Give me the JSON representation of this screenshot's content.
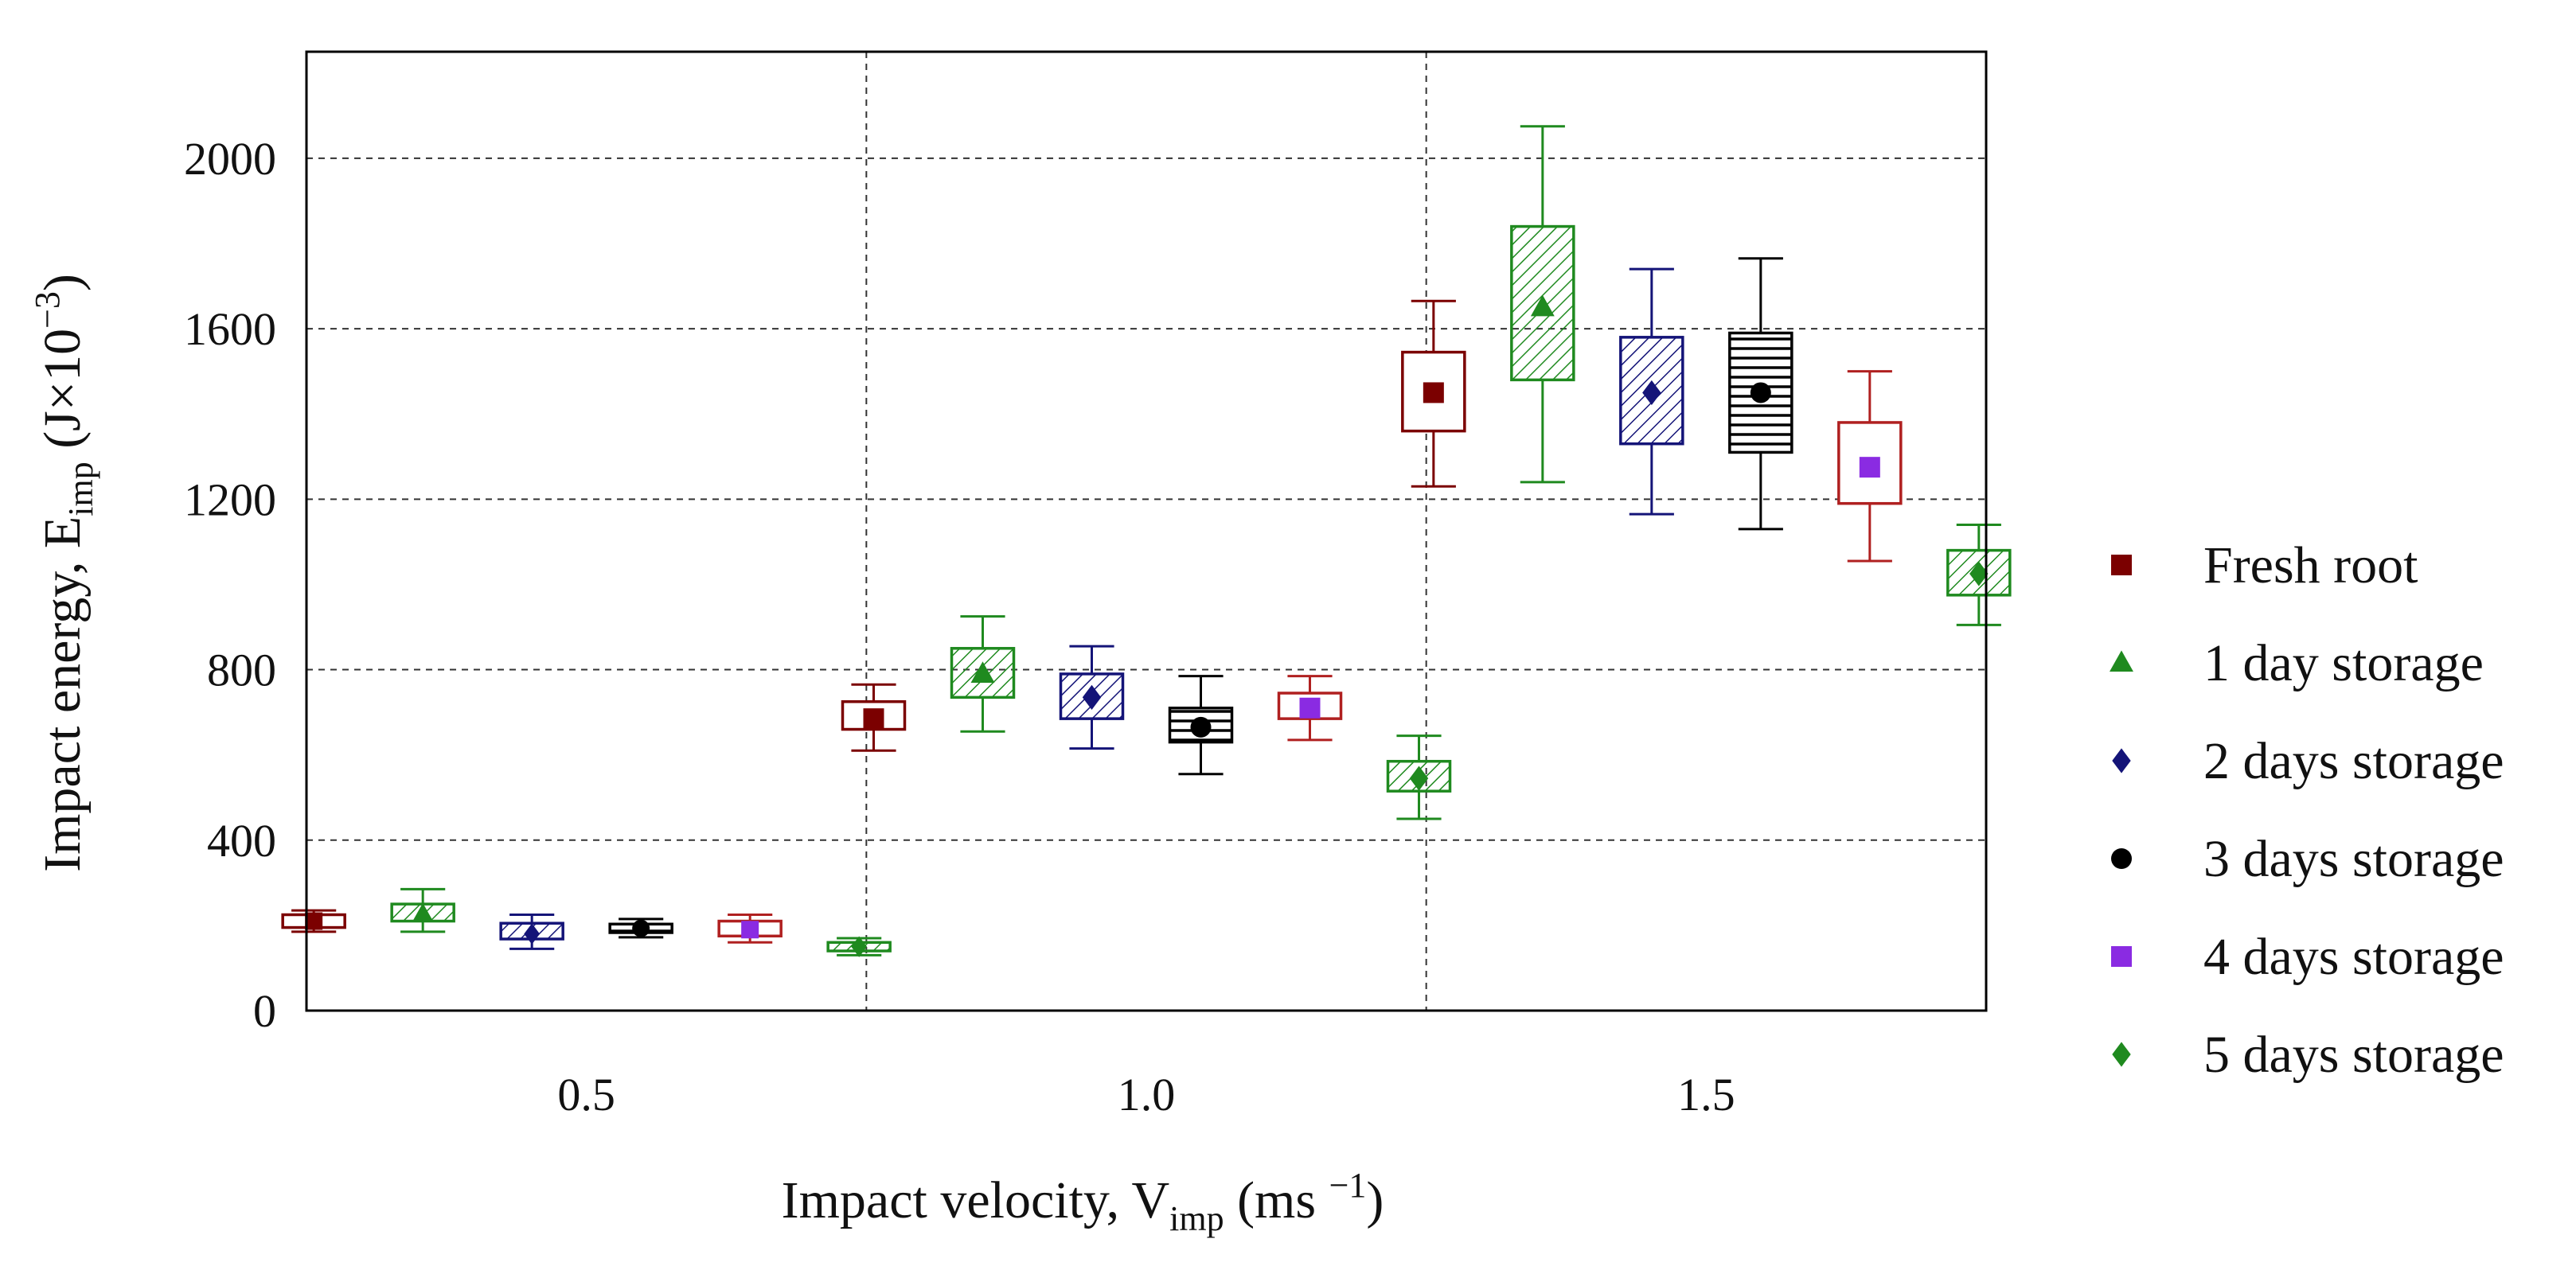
{
  "chart_data": {
    "type": "box",
    "xlabel": {
      "main": "Impact velocity, V",
      "sub": "imp",
      "unit_pre": " (ms ",
      "unit_sup": "−1",
      "unit_post": ")"
    },
    "ylabel": {
      "main": "Impact energy, E",
      "sub": "imp",
      "unit_pre": " (J×10",
      "unit_sup": "−3",
      "unit_post": ")"
    },
    "ylim": [
      0,
      2250
    ],
    "yticks": [
      "0",
      "400",
      "800",
      "1200",
      "1600",
      "2000"
    ],
    "categories": [
      "0.5",
      "1.0",
      "1.5"
    ],
    "grid": true,
    "legend_position": "right",
    "series": [
      {
        "name": "Fresh root",
        "color": "#7b0000",
        "marker": "square",
        "fill": "none",
        "stats": [
          {
            "low": 185,
            "q1": 195,
            "median": 210,
            "q3": 225,
            "high": 235
          },
          {
            "low": 610,
            "q1": 660,
            "median": 685,
            "q3": 725,
            "high": 765
          },
          {
            "low": 1230,
            "q1": 1360,
            "median": 1450,
            "q3": 1545,
            "high": 1665
          }
        ]
      },
      {
        "name": "1 day storage",
        "color": "#1f8a1f",
        "marker": "triangle",
        "fill": "diagonal",
        "stats": [
          {
            "low": 185,
            "q1": 210,
            "median": 228,
            "q3": 250,
            "high": 285
          },
          {
            "low": 655,
            "q1": 735,
            "median": 790,
            "q3": 850,
            "high": 925
          },
          {
            "low": 1240,
            "q1": 1480,
            "median": 1650,
            "q3": 1840,
            "high": 2075
          }
        ]
      },
      {
        "name": "2 days storage",
        "color": "#141478",
        "marker": "diamond",
        "fill": "diagonal",
        "stats": [
          {
            "low": 145,
            "q1": 168,
            "median": 180,
            "q3": 205,
            "high": 225
          },
          {
            "low": 615,
            "q1": 685,
            "median": 735,
            "q3": 790,
            "high": 855
          },
          {
            "low": 1165,
            "q1": 1330,
            "median": 1450,
            "q3": 1580,
            "high": 1740
          }
        ]
      },
      {
        "name": "3 days storage",
        "color": "#000000",
        "marker": "circle",
        "fill": "horizontal",
        "stats": [
          {
            "low": 172,
            "q1": 183,
            "median": 193,
            "q3": 203,
            "high": 215
          },
          {
            "low": 555,
            "q1": 630,
            "median": 665,
            "q3": 710,
            "high": 785
          },
          {
            "low": 1130,
            "q1": 1310,
            "median": 1450,
            "q3": 1590,
            "high": 1765
          }
        ]
      },
      {
        "name": "4 days storage",
        "color": "#8a2be2",
        "marker": "square",
        "fill": "none",
        "box_color": "#b02020",
        "stats": [
          {
            "low": 160,
            "q1": 175,
            "median": 190,
            "q3": 210,
            "high": 225
          },
          {
            "low": 635,
            "q1": 685,
            "median": 710,
            "q3": 745,
            "high": 785
          },
          {
            "low": 1055,
            "q1": 1190,
            "median": 1275,
            "q3": 1380,
            "high": 1500
          }
        ]
      },
      {
        "name": "5 days storage",
        "color": "#1f8a1f",
        "marker": "diamond",
        "fill": "diagonal",
        "stats": [
          {
            "low": 130,
            "q1": 140,
            "median": 150,
            "q3": 160,
            "high": 170
          },
          {
            "low": 450,
            "q1": 515,
            "median": 545,
            "q3": 585,
            "high": 645
          },
          {
            "low": 905,
            "q1": 975,
            "median": 1025,
            "q3": 1080,
            "high": 1140
          }
        ]
      }
    ]
  }
}
